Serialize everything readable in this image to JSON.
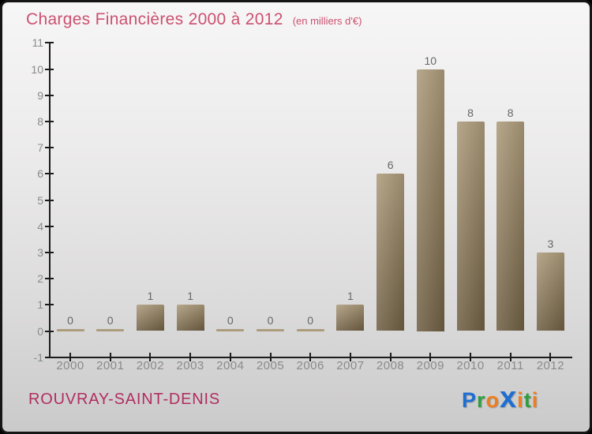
{
  "header": {
    "title": "Charges Financières 2000 à 2012",
    "subtitle": "(en milliers d'€)"
  },
  "chart_data": {
    "type": "bar",
    "title": "Charges Financières 2000 à 2012",
    "subtitle": "(en milliers d'€)",
    "categories": [
      "2000",
      "2001",
      "2002",
      "2003",
      "2004",
      "2005",
      "2006",
      "2007",
      "2008",
      "2009",
      "2010",
      "2011",
      "2012"
    ],
    "values": [
      0,
      0,
      1,
      1,
      0,
      0,
      0,
      1,
      6,
      10,
      8,
      8,
      3
    ],
    "xlabel": "",
    "ylabel": "",
    "ylim": [
      -1,
      11
    ],
    "ytick_step": 1,
    "grid": false,
    "legend": "none",
    "bar_value_labels": true
  },
  "footer": {
    "location": "ROUVRAY-SAINT-DENIS",
    "logo_text": "Proxiti",
    "logo_letters": [
      {
        "ch": "P",
        "color": "#1e6fd2",
        "big": false
      },
      {
        "ch": "r",
        "color": "#2f9e3f",
        "big": false
      },
      {
        "ch": "o",
        "color": "#ee7e1d",
        "big": false
      },
      {
        "ch": "x",
        "color": "#1e6fd2",
        "big": true
      },
      {
        "ch": "i",
        "color": "#ee7e1d",
        "big": false
      },
      {
        "ch": "t",
        "color": "#2f9e3f",
        "big": false
      },
      {
        "ch": "i",
        "color": "#ee7e1d",
        "big": false
      }
    ]
  },
  "colors": {
    "title": "#cb5170",
    "location": "#b02e60",
    "bar_top": "#ab9979",
    "bar_bottom": "#6e5e42",
    "zero_bar": "#ac9c7c",
    "axis": "#1c1c1c",
    "tick_label": "#8a8a8a",
    "value_label": "#666666",
    "bg_top": "#f7f6f6",
    "bg_bottom": "#cbcaca"
  }
}
